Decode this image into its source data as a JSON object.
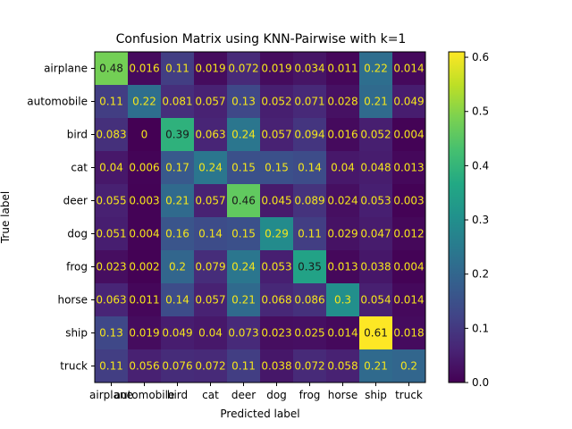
{
  "chart_data": {
    "type": "heatmap",
    "title": "Confusion Matrix using KNN-Pairwise with k=1",
    "xlabel": "Predicted label",
    "ylabel": "True label",
    "x_categories": [
      "airplane",
      "automobile",
      "bird",
      "cat",
      "deer",
      "dog",
      "frog",
      "horse",
      "ship",
      "truck"
    ],
    "y_categories": [
      "airplane",
      "automobile",
      "bird",
      "cat",
      "deer",
      "dog",
      "frog",
      "horse",
      "ship",
      "truck"
    ],
    "values": [
      [
        0.48,
        0.016,
        0.11,
        0.019,
        0.072,
        0.019,
        0.034,
        0.011,
        0.22,
        0.014
      ],
      [
        0.11,
        0.22,
        0.081,
        0.057,
        0.13,
        0.052,
        0.071,
        0.028,
        0.21,
        0.049
      ],
      [
        0.083,
        0,
        0.39,
        0.063,
        0.24,
        0.057,
        0.094,
        0.016,
        0.052,
        0.004
      ],
      [
        0.04,
        0.006,
        0.17,
        0.24,
        0.15,
        0.15,
        0.14,
        0.04,
        0.048,
        0.013
      ],
      [
        0.055,
        0.003,
        0.21,
        0.057,
        0.46,
        0.045,
        0.089,
        0.024,
        0.053,
        0.003
      ],
      [
        0.051,
        0.004,
        0.16,
        0.14,
        0.15,
        0.29,
        0.11,
        0.029,
        0.047,
        0.012
      ],
      [
        0.023,
        0.002,
        0.2,
        0.079,
        0.24,
        0.053,
        0.35,
        0.013,
        0.038,
        0.004
      ],
      [
        0.063,
        0.011,
        0.14,
        0.057,
        0.21,
        0.068,
        0.086,
        0.3,
        0.054,
        0.014
      ],
      [
        0.13,
        0.019,
        0.049,
        0.04,
        0.073,
        0.023,
        0.025,
        0.014,
        0.61,
        0.018
      ],
      [
        0.11,
        0.056,
        0.076,
        0.072,
        0.11,
        0.038,
        0.072,
        0.058,
        0.21,
        0.2
      ]
    ],
    "colorbar": {
      "range": [
        0.0,
        0.6
      ],
      "ticks": [
        "0.0",
        "0.1",
        "0.2",
        "0.3",
        "0.4",
        "0.5",
        "0.6"
      ],
      "colormap": "viridis"
    },
    "grid": false
  }
}
